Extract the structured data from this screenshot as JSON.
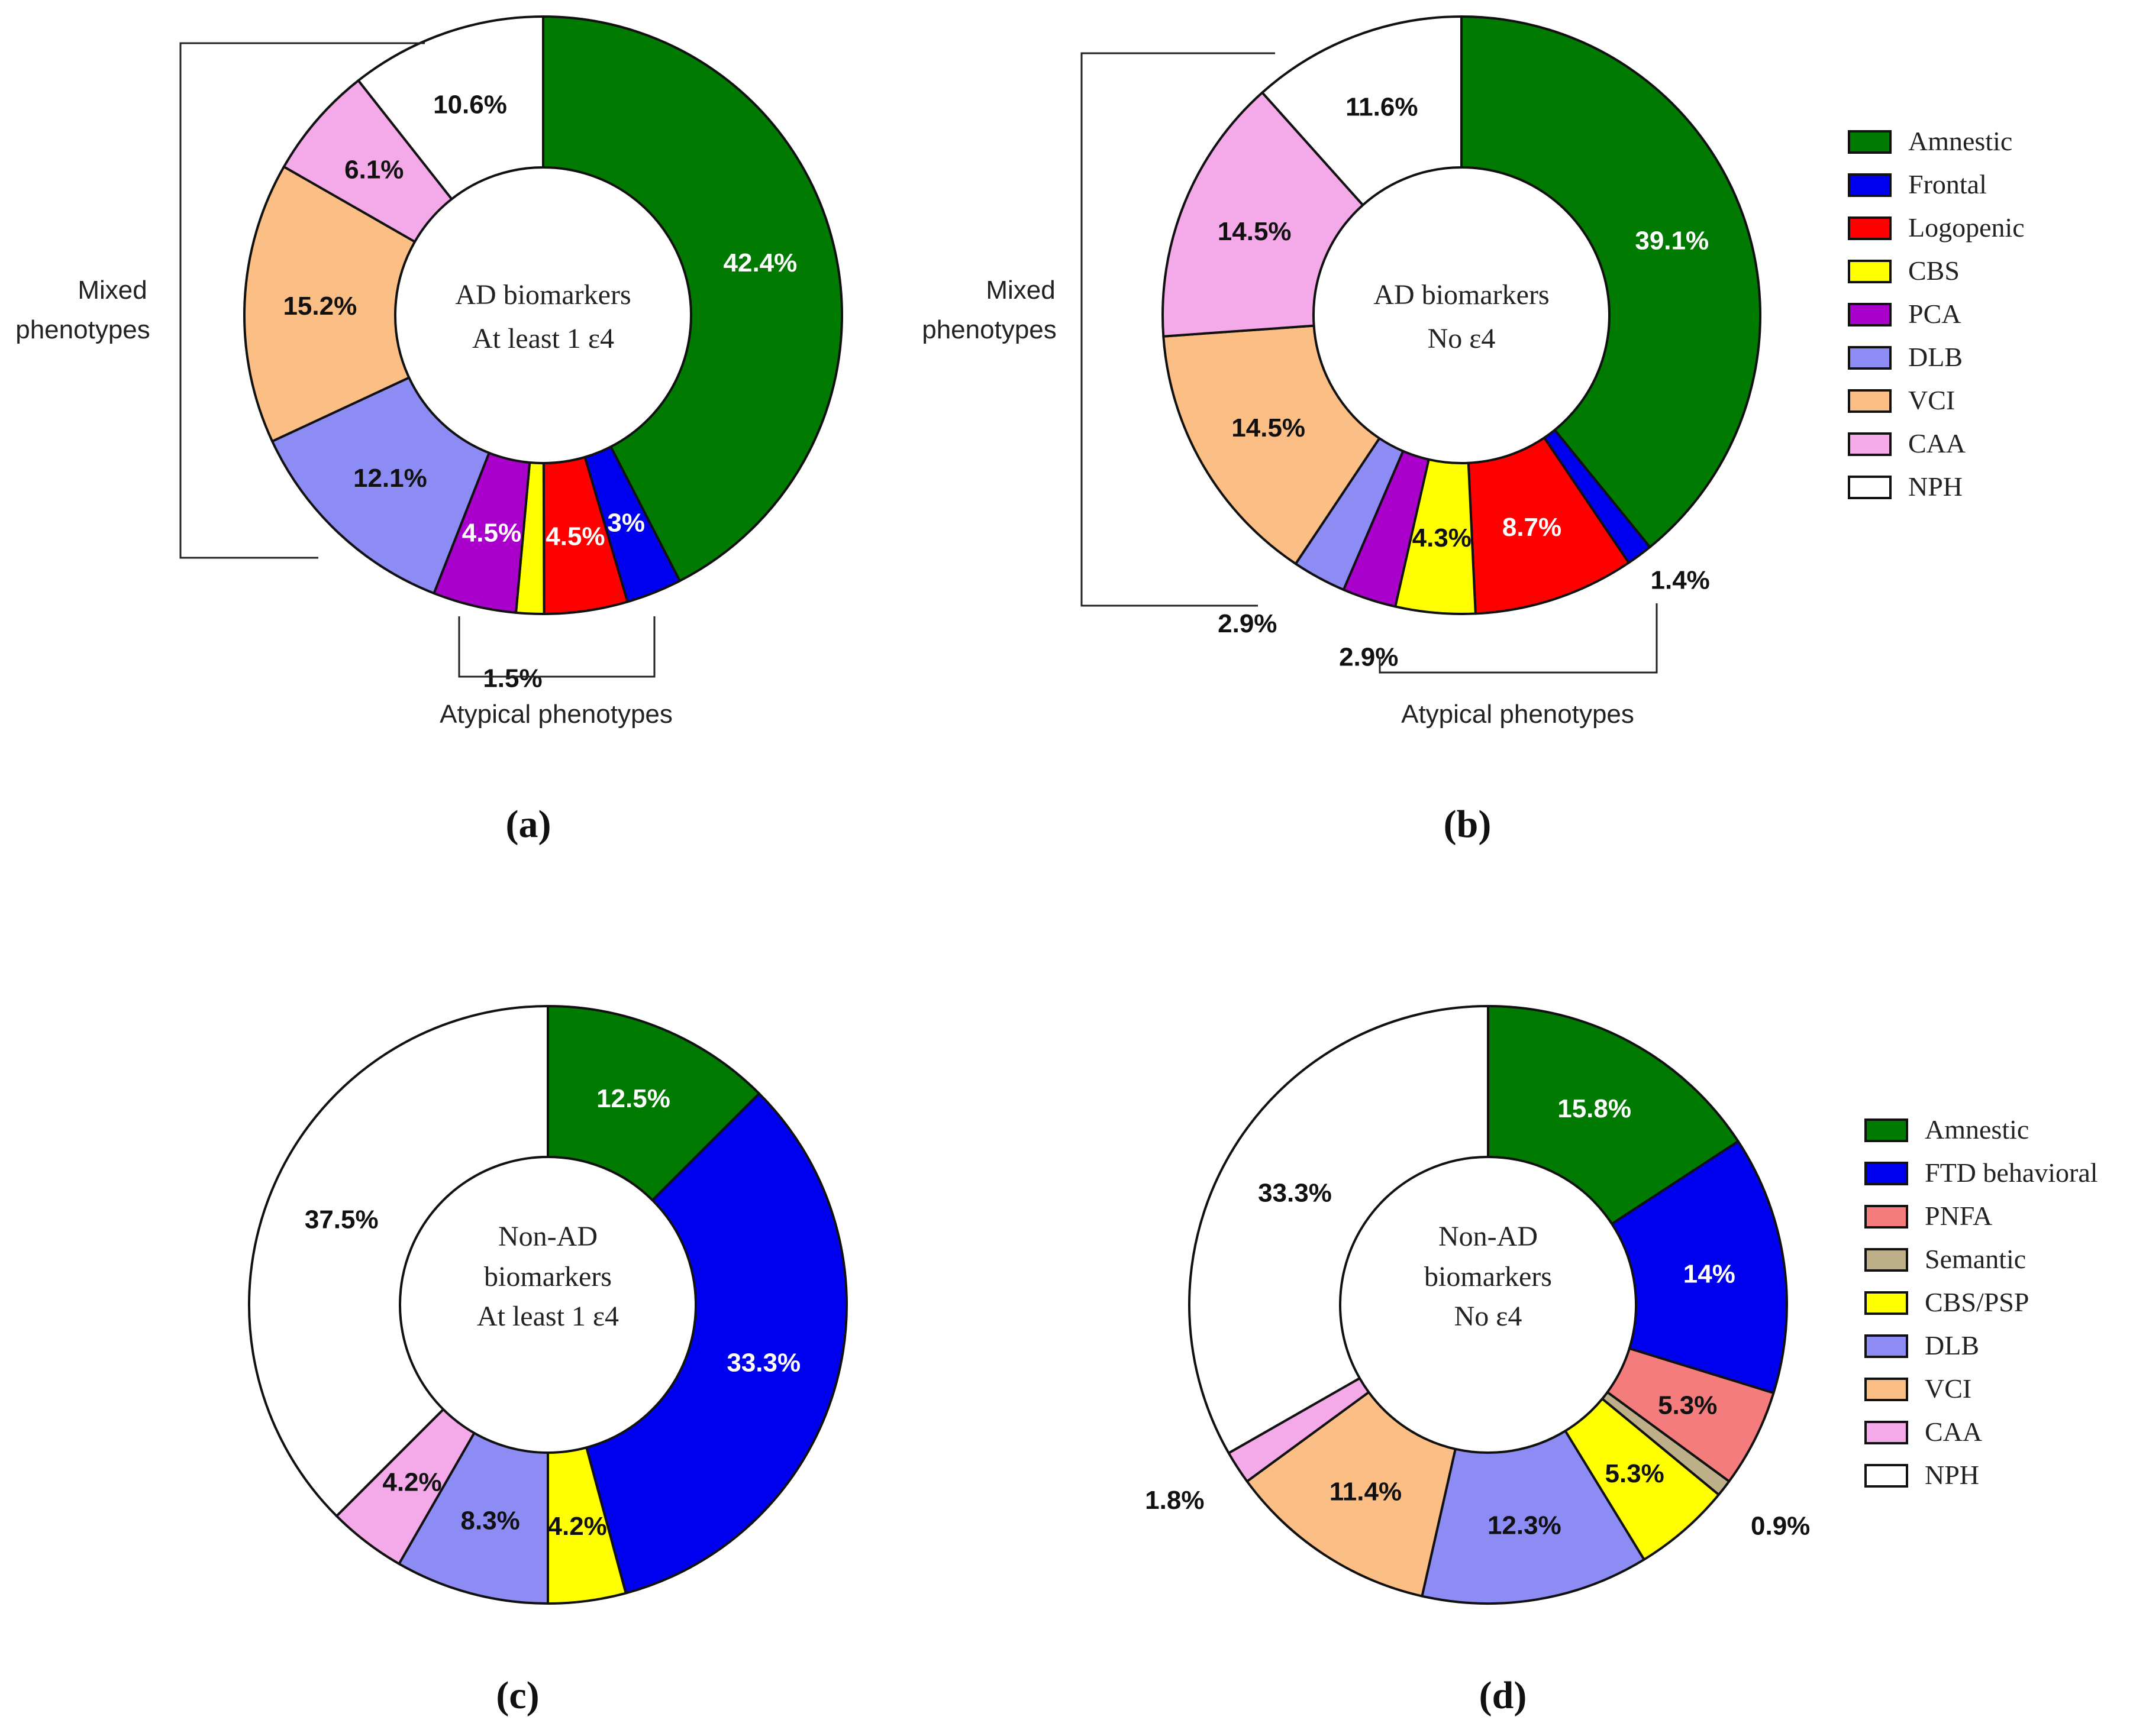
{
  "colors": {
    "Amnestic": "#007a00",
    "Frontal": "#0000f0",
    "FTD behavioral": "#0000f0",
    "Logopenic": "#ff0000",
    "PNFA": "#f47c7c",
    "Semantic": "#bdb088",
    "CBS": "#ffff00",
    "CBS/PSP": "#ffff00",
    "PCA": "#aa00cc",
    "DLB": "#8c8cf4",
    "VCI": "#fbbf86",
    "CAA": "#f4aae8",
    "NPH": "#ffffff"
  },
  "chart_data": [
    {
      "type": "pie",
      "panel": "(a)",
      "center_lines": [
        "AD biomarkers",
        "At least 1 ε4"
      ],
      "categories": [
        "Amnestic",
        "Frontal",
        "Logopenic",
        "CBS",
        "PCA",
        "DLB",
        "VCI",
        "CAA",
        "NPH"
      ],
      "values": [
        42.4,
        3,
        4.5,
        1.5,
        4.5,
        12.1,
        15.2,
        6.1,
        10.6
      ],
      "value_labels": [
        "42.4%",
        "3%",
        "4.5%",
        "1.5%",
        "4.5%",
        "12.1%",
        "15.2%",
        "6.1%",
        "10.6%"
      ],
      "brackets": [
        {
          "label": [
            "Mixed",
            "phenotypes"
          ]
        },
        {
          "label": [
            "Atypical phenotypes"
          ]
        }
      ]
    },
    {
      "type": "pie",
      "panel": "(b)",
      "center_lines": [
        "AD biomarkers",
        "No ε4"
      ],
      "categories": [
        "Amnestic",
        "Frontal",
        "Logopenic",
        "CBS",
        "PCA",
        "DLB",
        "VCI",
        "CAA",
        "NPH"
      ],
      "values": [
        39.1,
        1.4,
        8.7,
        4.3,
        2.9,
        2.9,
        14.5,
        14.5,
        11.6
      ],
      "value_labels": [
        "39.1%",
        "1.4%",
        "8.7%",
        "4.3%",
        "2.9%",
        "2.9%",
        "14.5%",
        "14.5%",
        "11.6%"
      ],
      "legend": [
        "Amnestic",
        "Frontal",
        "Logopenic",
        "CBS",
        "PCA",
        "DLB",
        "VCI",
        "CAA",
        "NPH"
      ],
      "brackets": [
        {
          "label": [
            "Mixed",
            "phenotypes"
          ]
        },
        {
          "label": [
            "Atypical phenotypes"
          ]
        }
      ]
    },
    {
      "type": "pie",
      "panel": "(c)",
      "center_lines": [
        "Non-AD",
        "biomarkers",
        "At least 1 ε4"
      ],
      "categories": [
        "Amnestic",
        "FTD behavioral",
        "CBS/PSP",
        "DLB",
        "CAA",
        "NPH"
      ],
      "values": [
        12.5,
        33.3,
        4.2,
        8.3,
        4.2,
        37.5
      ],
      "value_labels": [
        "12.5%",
        "33.3%",
        "4.2%",
        "8.3%",
        "4.2%",
        "37.5%"
      ]
    },
    {
      "type": "pie",
      "panel": "(d)",
      "center_lines": [
        "Non-AD",
        "biomarkers",
        "No ε4"
      ],
      "categories": [
        "Amnestic",
        "FTD behavioral",
        "PNFA",
        "Semantic",
        "CBS/PSP",
        "DLB",
        "VCI",
        "CAA",
        "NPH"
      ],
      "values": [
        15.8,
        14,
        5.3,
        0.9,
        5.3,
        12.3,
        11.4,
        1.8,
        33.3
      ],
      "value_labels": [
        "15.8%",
        "14%",
        "5.3%",
        "0.9%",
        "5.3%",
        "12.3%",
        "11.4%",
        "1.8%",
        "33.3%"
      ],
      "legend": [
        "Amnestic",
        "FTD behavioral",
        "PNFA",
        "Semantic",
        "CBS/PSP",
        "DLB",
        "VCI",
        "CAA",
        "NPH"
      ]
    }
  ]
}
